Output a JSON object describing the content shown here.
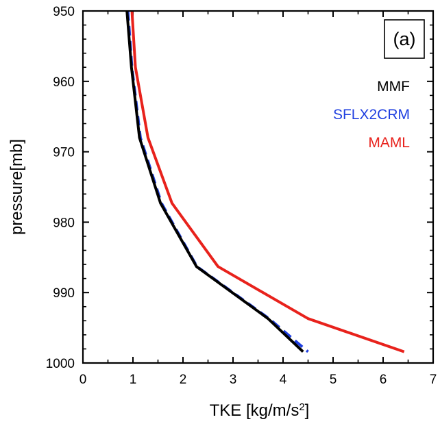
{
  "chart_data": {
    "type": "line",
    "panel_label": "(a)",
    "xlabel": "TKE [kg/m/s",
    "xlabel_sup": "2",
    "xlabel_end": "]",
    "ylabel": "pressure[mb]",
    "xlim": [
      0,
      7
    ],
    "ylim": [
      950,
      1000
    ],
    "y_inverted": true,
    "x_ticks": [
      0,
      1,
      2,
      3,
      4,
      5,
      6,
      7
    ],
    "y_ticks": [
      950,
      960,
      970,
      980,
      990,
      1000
    ],
    "grid": false,
    "legend_position": "top-right",
    "series": [
      {
        "name": "MAML",
        "color": "#e8221c",
        "dash": "solid",
        "points": [
          [
            0.98,
            950
          ],
          [
            1.05,
            958
          ],
          [
            1.3,
            968
          ],
          [
            1.78,
            977.3
          ],
          [
            2.7,
            986.3
          ],
          [
            4.5,
            993.7
          ],
          [
            6.42,
            998.4
          ]
        ]
      },
      {
        "name": "SFLX2CRM",
        "color": "#1f3fe0",
        "dash": "dashed",
        "points": [
          [
            0.9,
            950
          ],
          [
            0.98,
            958
          ],
          [
            1.15,
            968
          ],
          [
            1.57,
            977.3
          ],
          [
            2.28,
            986.3
          ],
          [
            3.72,
            993.7
          ],
          [
            4.5,
            998.4
          ]
        ]
      },
      {
        "name": "MMF",
        "color": "#000000",
        "dash": "solid",
        "points": [
          [
            0.88,
            950
          ],
          [
            0.97,
            958
          ],
          [
            1.13,
            968
          ],
          [
            1.55,
            977.3
          ],
          [
            2.27,
            986.3
          ],
          [
            3.7,
            993.7
          ],
          [
            4.4,
            998.4
          ]
        ]
      }
    ]
  }
}
